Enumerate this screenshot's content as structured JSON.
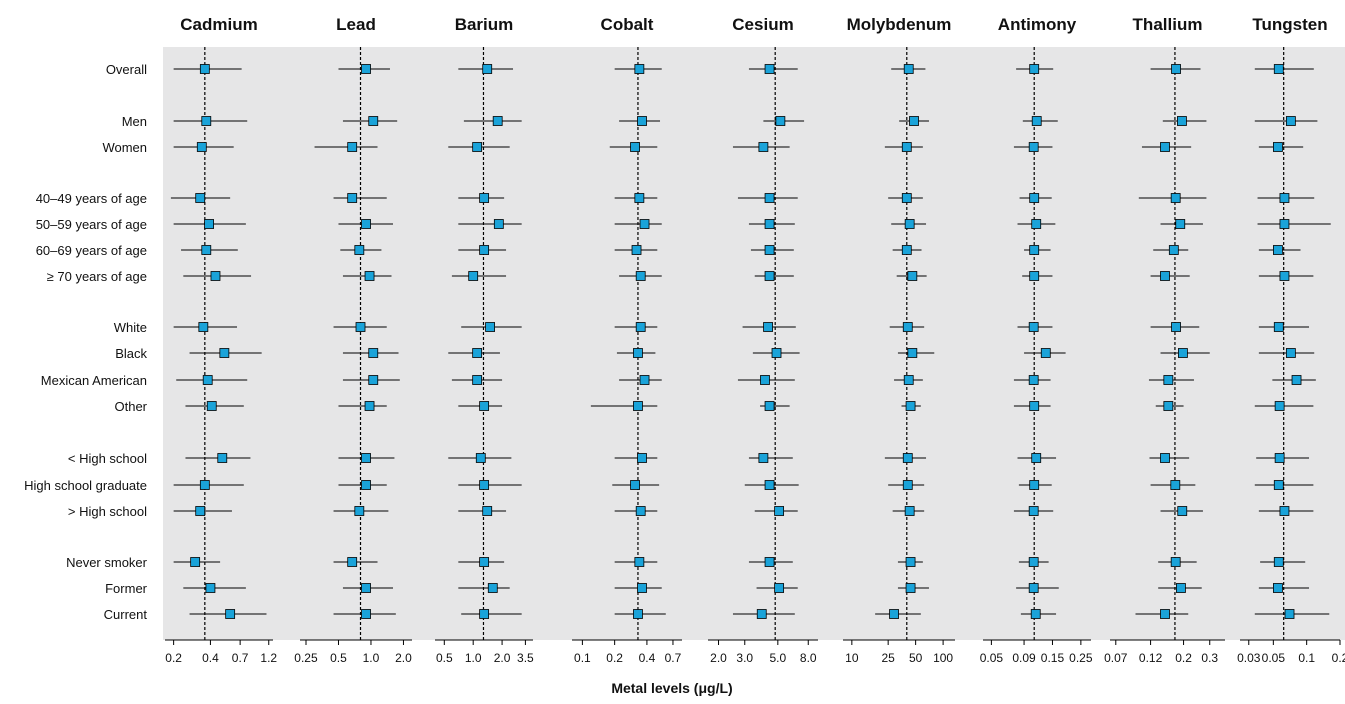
{
  "chart_data": {
    "type": "forest",
    "xlabel": "Metal levels (μg/L)",
    "scale": "log",
    "row_labels": [
      "Overall",
      "Men",
      "Women",
      "40–49 years of age",
      "50–59 years of age",
      "60–69 years of age",
      "≥ 70 years of age",
      "White",
      "Black",
      "Mexican American",
      "Other",
      "< High school",
      "High school graduate",
      "> High school",
      "Never smoker",
      "Former",
      "Current"
    ],
    "colors": {
      "panel_bg": "#e6e6e7",
      "marker": "#1aa3d9",
      "marker_edge": "#000000",
      "ci_line": "#000000",
      "ref_line": "#000000"
    },
    "panels": [
      {
        "title": "Cadmium",
        "xlim": [
          0.17,
          1.3
        ],
        "ticks": [
          {
            "v": 0.2,
            "l": "0.2"
          },
          {
            "v": 0.4,
            "l": "0.4"
          },
          {
            "v": 0.7,
            "l": "0.7"
          },
          {
            "v": 1.2,
            "l": "1.2"
          }
        ],
        "reference": 0.36,
        "points": [
          [
            0.36,
            0.2,
            0.72
          ],
          [
            0.37,
            0.2,
            0.8
          ],
          [
            0.34,
            0.2,
            0.62
          ],
          [
            0.33,
            0.19,
            0.58
          ],
          [
            0.39,
            0.2,
            0.78
          ],
          [
            0.37,
            0.23,
            0.67
          ],
          [
            0.44,
            0.24,
            0.86
          ],
          [
            0.35,
            0.2,
            0.66
          ],
          [
            0.52,
            0.27,
            1.05
          ],
          [
            0.38,
            0.21,
            0.8
          ],
          [
            0.41,
            0.25,
            0.75
          ],
          [
            0.5,
            0.25,
            0.85
          ],
          [
            0.36,
            0.2,
            0.75
          ],
          [
            0.33,
            0.2,
            0.6
          ],
          [
            0.3,
            0.2,
            0.48
          ],
          [
            0.4,
            0.24,
            0.78
          ],
          [
            0.58,
            0.27,
            1.15
          ]
        ]
      },
      {
        "title": "Lead",
        "xlim": [
          0.22,
          2.4
        ],
        "ticks": [
          {
            "v": 0.25,
            "l": "0.25"
          },
          {
            "v": 0.5,
            "l": "0.5"
          },
          {
            "v": 1.0,
            "l": "1.0"
          },
          {
            "v": 2.0,
            "l": "2.0"
          }
        ],
        "reference": 0.8,
        "points": [
          [
            0.9,
            0.5,
            1.5
          ],
          [
            1.05,
            0.55,
            1.75
          ],
          [
            0.67,
            0.3,
            1.15
          ],
          [
            0.67,
            0.45,
            1.4
          ],
          [
            0.9,
            0.5,
            1.6
          ],
          [
            0.78,
            0.52,
            1.25
          ],
          [
            0.97,
            0.55,
            1.55
          ],
          [
            0.8,
            0.45,
            1.4
          ],
          [
            1.05,
            0.55,
            1.8
          ],
          [
            1.05,
            0.55,
            1.85
          ],
          [
            0.97,
            0.5,
            1.4
          ],
          [
            0.9,
            0.5,
            1.65
          ],
          [
            0.9,
            0.5,
            1.4
          ],
          [
            0.78,
            0.45,
            1.45
          ],
          [
            0.67,
            0.45,
            1.15
          ],
          [
            0.9,
            0.55,
            1.6
          ],
          [
            0.9,
            0.45,
            1.7
          ]
        ]
      },
      {
        "title": "Barium",
        "xlim": [
          0.4,
          4.2
        ],
        "ticks": [
          {
            "v": 0.5,
            "l": "0.5"
          },
          {
            "v": 1.0,
            "l": "1.0"
          },
          {
            "v": 2.0,
            "l": "2.0"
          },
          {
            "v": 3.5,
            "l": "3.5"
          }
        ],
        "reference": 1.28,
        "points": [
          [
            1.4,
            0.7,
            2.6
          ],
          [
            1.8,
            0.8,
            3.2
          ],
          [
            1.1,
            0.55,
            2.4
          ],
          [
            1.3,
            0.7,
            2.1
          ],
          [
            1.85,
            0.7,
            3.2
          ],
          [
            1.3,
            0.7,
            2.2
          ],
          [
            1.0,
            0.6,
            2.2
          ],
          [
            1.5,
            0.75,
            3.2
          ],
          [
            1.1,
            0.55,
            1.9
          ],
          [
            1.1,
            0.6,
            2.0
          ],
          [
            1.3,
            0.7,
            2.0
          ],
          [
            1.2,
            0.55,
            2.5
          ],
          [
            1.3,
            0.7,
            3.2
          ],
          [
            1.4,
            0.7,
            2.2
          ],
          [
            1.3,
            0.7,
            2.1
          ],
          [
            1.6,
            0.7,
            2.4
          ],
          [
            1.3,
            0.75,
            3.2
          ]
        ]
      },
      {
        "title": "Cobalt",
        "xlim": [
          0.08,
          0.85
        ],
        "ticks": [
          {
            "v": 0.1,
            "l": "0.1"
          },
          {
            "v": 0.2,
            "l": "0.2"
          },
          {
            "v": 0.4,
            "l": "0.4"
          },
          {
            "v": 0.7,
            "l": "0.7"
          }
        ],
        "reference": 0.33,
        "points": [
          [
            0.34,
            0.2,
            0.55
          ],
          [
            0.36,
            0.22,
            0.53
          ],
          [
            0.31,
            0.18,
            0.5
          ],
          [
            0.34,
            0.2,
            0.5
          ],
          [
            0.38,
            0.2,
            0.55
          ],
          [
            0.32,
            0.2,
            0.5
          ],
          [
            0.35,
            0.22,
            0.55
          ],
          [
            0.35,
            0.2,
            0.5
          ],
          [
            0.33,
            0.21,
            0.48
          ],
          [
            0.38,
            0.22,
            0.55
          ],
          [
            0.33,
            0.12,
            0.5
          ],
          [
            0.36,
            0.2,
            0.5
          ],
          [
            0.31,
            0.19,
            0.52
          ],
          [
            0.35,
            0.2,
            0.5
          ],
          [
            0.34,
            0.2,
            0.5
          ],
          [
            0.36,
            0.2,
            0.55
          ],
          [
            0.33,
            0.2,
            0.6
          ]
        ]
      },
      {
        "title": "Cesium",
        "xlim": [
          1.7,
          9.3
        ],
        "ticks": [
          {
            "v": 2.0,
            "l": "2.0"
          },
          {
            "v": 3.0,
            "l": "3.0"
          },
          {
            "v": 5.0,
            "l": "5.0"
          },
          {
            "v": 8.0,
            "l": "8.0"
          }
        ],
        "reference": 4.8,
        "points": [
          [
            4.4,
            3.2,
            6.8
          ],
          [
            5.2,
            4.0,
            7.5
          ],
          [
            4.0,
            2.5,
            6.0
          ],
          [
            4.4,
            2.7,
            6.8
          ],
          [
            4.4,
            3.2,
            6.5
          ],
          [
            4.4,
            3.3,
            6.4
          ],
          [
            4.4,
            3.5,
            6.4
          ],
          [
            4.3,
            2.9,
            6.6
          ],
          [
            4.9,
            3.4,
            7.0
          ],
          [
            4.1,
            2.7,
            6.5
          ],
          [
            4.4,
            3.8,
            6.0
          ],
          [
            4.0,
            3.2,
            6.3
          ],
          [
            4.4,
            3.0,
            6.9
          ],
          [
            5.1,
            3.5,
            6.8
          ],
          [
            4.4,
            3.2,
            6.3
          ],
          [
            5.1,
            3.6,
            6.8
          ],
          [
            3.9,
            2.5,
            6.5
          ]
        ]
      },
      {
        "title": "Molybdenum",
        "xlim": [
          8,
          135
        ],
        "ticks": [
          {
            "v": 10,
            "l": "10"
          },
          {
            "v": 25,
            "l": "25"
          },
          {
            "v": 50,
            "l": "50"
          },
          {
            "v": 100,
            "l": "100"
          }
        ],
        "reference": 40,
        "points": [
          [
            42,
            27,
            64
          ],
          [
            48,
            33,
            70
          ],
          [
            40,
            23,
            60
          ],
          [
            40,
            25,
            60
          ],
          [
            43,
            27,
            65
          ],
          [
            40,
            28,
            58
          ],
          [
            46,
            31,
            66
          ],
          [
            41,
            26,
            62
          ],
          [
            46,
            32,
            80
          ],
          [
            42,
            29,
            60
          ],
          [
            44,
            35,
            57
          ],
          [
            41,
            23,
            65
          ],
          [
            41,
            25,
            62
          ],
          [
            43,
            28,
            62
          ],
          [
            44,
            32,
            60
          ],
          [
            44,
            32,
            70
          ],
          [
            29,
            18,
            57
          ]
        ]
      },
      {
        "title": "Antimony",
        "xlim": [
          0.043,
          0.3
        ],
        "ticks": [
          {
            "v": 0.05,
            "l": "0.05"
          },
          {
            "v": 0.09,
            "l": "0.09"
          },
          {
            "v": 0.15,
            "l": "0.15"
          },
          {
            "v": 0.25,
            "l": "0.25"
          }
        ],
        "reference": 0.108,
        "points": [
          [
            0.108,
            0.078,
            0.152
          ],
          [
            0.113,
            0.088,
            0.165
          ],
          [
            0.107,
            0.075,
            0.15
          ],
          [
            0.108,
            0.083,
            0.148
          ],
          [
            0.112,
            0.08,
            0.158
          ],
          [
            0.108,
            0.09,
            0.145
          ],
          [
            0.108,
            0.087,
            0.15
          ],
          [
            0.107,
            0.08,
            0.15
          ],
          [
            0.133,
            0.09,
            0.19
          ],
          [
            0.107,
            0.075,
            0.145
          ],
          [
            0.108,
            0.075,
            0.145
          ],
          [
            0.112,
            0.08,
            0.16
          ],
          [
            0.108,
            0.082,
            0.148
          ],
          [
            0.107,
            0.075,
            0.152
          ],
          [
            0.107,
            0.082,
            0.14
          ],
          [
            0.107,
            0.078,
            0.168
          ],
          [
            0.111,
            0.085,
            0.16
          ]
        ]
      },
      {
        "title": "Thallium",
        "xlim": [
          0.064,
          0.38
        ],
        "ticks": [
          {
            "v": 0.07,
            "l": "0.07"
          },
          {
            "v": 0.12,
            "l": "0.12"
          },
          {
            "v": 0.2,
            "l": "0.2"
          },
          {
            "v": 0.3,
            "l": "0.3"
          }
        ],
        "reference": 0.175,
        "points": [
          [
            0.178,
            0.12,
            0.26
          ],
          [
            0.195,
            0.145,
            0.285
          ],
          [
            0.15,
            0.105,
            0.225
          ],
          [
            0.177,
            0.1,
            0.285
          ],
          [
            0.19,
            0.14,
            0.27
          ],
          [
            0.172,
            0.125,
            0.215
          ],
          [
            0.15,
            0.12,
            0.22
          ],
          [
            0.178,
            0.12,
            0.255
          ],
          [
            0.198,
            0.14,
            0.3
          ],
          [
            0.158,
            0.117,
            0.235
          ],
          [
            0.158,
            0.13,
            0.2
          ],
          [
            0.15,
            0.118,
            0.218
          ],
          [
            0.176,
            0.12,
            0.24
          ],
          [
            0.196,
            0.14,
            0.27
          ],
          [
            0.177,
            0.135,
            0.245
          ],
          [
            0.192,
            0.135,
            0.265
          ],
          [
            0.15,
            0.095,
            0.215
          ]
        ]
      },
      {
        "title": "Tungsten",
        "xlim": [
          0.025,
          0.2
        ],
        "ticks": [
          {
            "v": 0.03,
            "l": "0.03"
          },
          {
            "v": 0.05,
            "l": "0.05"
          },
          {
            "v": 0.1,
            "l": "0.1"
          },
          {
            "v": 0.2,
            "l": "0.2"
          }
        ],
        "reference": 0.062,
        "points": [
          [
            0.056,
            0.034,
            0.116
          ],
          [
            0.072,
            0.034,
            0.125
          ],
          [
            0.055,
            0.037,
            0.093
          ],
          [
            0.063,
            0.036,
            0.117
          ],
          [
            0.063,
            0.036,
            0.165
          ],
          [
            0.055,
            0.037,
            0.088
          ],
          [
            0.063,
            0.037,
            0.115
          ],
          [
            0.056,
            0.037,
            0.105
          ],
          [
            0.072,
            0.037,
            0.117
          ],
          [
            0.081,
            0.049,
            0.121
          ],
          [
            0.057,
            0.034,
            0.115
          ],
          [
            0.057,
            0.035,
            0.105
          ],
          [
            0.056,
            0.034,
            0.115
          ],
          [
            0.063,
            0.037,
            0.115
          ],
          [
            0.056,
            0.038,
            0.097
          ],
          [
            0.055,
            0.037,
            0.105
          ],
          [
            0.07,
            0.034,
            0.16
          ]
        ]
      }
    ]
  }
}
